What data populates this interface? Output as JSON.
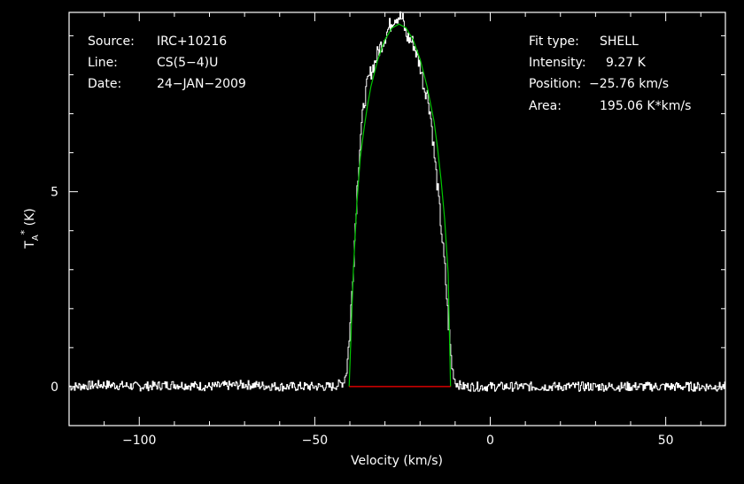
{
  "colors": {
    "background": "#000000",
    "axes": "#ffffff",
    "spectrum": "#ffffff",
    "fit": "#00c800",
    "baseline": "#ff0000"
  },
  "info_left": [
    {
      "label": "Source:",
      "value": "IRC+10216"
    },
    {
      "label": "Line:",
      "value": "CS(5−4)U"
    },
    {
      "label": "Date:",
      "value": "24−JAN−2009"
    }
  ],
  "info_right": [
    {
      "label": "Fit type:",
      "value": "SHELL"
    },
    {
      "label": "Intensity:",
      "value": "9.27 K"
    },
    {
      "label": "Position:",
      "value": "−25.76 km/s"
    },
    {
      "label": "Area:",
      "value": "195.06 K*km/s"
    }
  ],
  "chart_data": {
    "type": "line",
    "xlabel": "Velocity (km/s)",
    "ylabel": "T_A^* (K)",
    "xlim": [
      -120,
      67
    ],
    "ylim": [
      -1,
      9.6
    ],
    "x_ticks": [
      -100,
      -50,
      0,
      50
    ],
    "x_tick_labels": [
      "−100",
      "−50",
      "0",
      "50"
    ],
    "y_ticks": [
      0,
      5
    ],
    "y_tick_labels": [
      "0",
      "5"
    ],
    "grid": false,
    "series": [
      {
        "kind": "spectrum",
        "x": [
          -120,
          -110,
          -100,
          -90,
          -80,
          -70,
          -60,
          -50,
          -45,
          -42,
          -41,
          -40,
          -39,
          -38,
          -37,
          -36,
          -35,
          -34,
          -33,
          -32,
          -31,
          -30,
          -29,
          -28,
          -27,
          -26,
          -25,
          -24,
          -23,
          -22,
          -21,
          -20,
          -19,
          -18,
          -17,
          -16,
          -15,
          -14,
          -13,
          -12,
          -11,
          -10,
          -8,
          0,
          10,
          20,
          30,
          40,
          50,
          60,
          67
        ],
        "y": [
          0.0,
          0.05,
          0.0,
          0.05,
          0.0,
          0.05,
          0.0,
          0.0,
          0.0,
          0.1,
          0.4,
          1.6,
          3.3,
          5.1,
          6.5,
          7.3,
          7.8,
          8.1,
          8.3,
          8.6,
          8.8,
          9.0,
          9.2,
          9.4,
          9.5,
          9.5,
          9.4,
          9.0,
          8.9,
          8.8,
          8.5,
          8.2,
          7.7,
          7.5,
          6.9,
          5.9,
          5.0,
          4.0,
          3.0,
          1.6,
          0.5,
          0.1,
          0.0,
          0.0,
          0.0,
          0.0,
          0.0,
          0.0,
          0.0,
          0.0,
          0.0
        ]
      },
      {
        "kind": "fit",
        "x": [
          -40.2,
          -39,
          -38,
          -37,
          -36,
          -35,
          -34,
          -32,
          -30,
          -28,
          -26,
          -24,
          -22,
          -20,
          -18,
          -16,
          -15,
          -14,
          -13,
          -12,
          -11.3
        ],
        "y": [
          0.0,
          3.0,
          4.7,
          5.9,
          6.6,
          7.2,
          7.7,
          8.4,
          8.9,
          9.2,
          9.3,
          9.2,
          8.9,
          8.4,
          7.7,
          6.8,
          6.1,
          5.3,
          4.3,
          2.9,
          0.0
        ]
      },
      {
        "kind": "baseline",
        "x": [
          -40.2,
          -11.3
        ],
        "y": [
          0.0,
          0.0
        ]
      }
    ]
  }
}
